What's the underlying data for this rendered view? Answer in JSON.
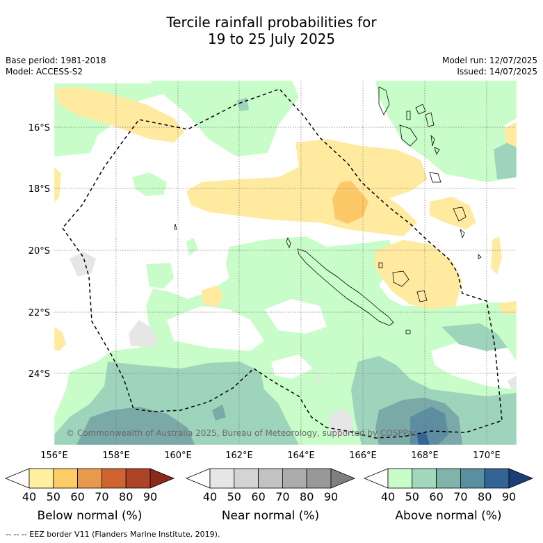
{
  "title_line1": "Tercile rainfall probabilities for",
  "title_line2": "19 to 25 July 2025",
  "base_period": "Base period: 1981-2018",
  "model": "Model: ACCESS-S2",
  "model_run": "Model run: 12/07/2025",
  "issued": "Issued: 14/07/2025",
  "copyright": "© Commonwealth of Australia 2025, Bureau of Meteorology, supported by COSPPac",
  "lat_labels": [
    "16°S",
    "18°S",
    "20°S",
    "22°S",
    "24°S"
  ],
  "lon_labels": [
    "156°E",
    "158°E",
    "160°E",
    "162°E",
    "164°E",
    "166°E",
    "168°E",
    "170°E"
  ],
  "colorbars": [
    {
      "title": "Below normal (%)",
      "ticks": [
        "40",
        "50",
        "60",
        "70",
        "80",
        "90"
      ],
      "colors": [
        "#ffffff",
        "#fff0a0",
        "#fdcc66",
        "#e89a4c",
        "#cf6430",
        "#ad4425",
        "#8a2a1c"
      ]
    },
    {
      "title": "Near normal (%)",
      "ticks": [
        "40",
        "50",
        "60",
        "70",
        "80",
        "90"
      ],
      "colors": [
        "#ffffff",
        "#e6e6e6",
        "#d4d4d4",
        "#c2c2c2",
        "#acacac",
        "#999999",
        "#7f7f7f"
      ]
    },
    {
      "title": "Above normal (%)",
      "ticks": [
        "40",
        "50",
        "60",
        "70",
        "80",
        "90"
      ],
      "colors": [
        "#ffffff",
        "#c8fcc8",
        "#a2d8bb",
        "#80b4aa",
        "#5a8fa0",
        "#326496",
        "#1a3f74"
      ]
    }
  ],
  "footer": "--  --  -- EEZ border V11 (Flanders Marine Institute, 2019).",
  "colors": {
    "below_50": "#ffeaa0",
    "below_60": "#fdc868",
    "near_50": "#e6e6e6",
    "above_50": "#c8fcc8",
    "above_60": "#9fd4bc",
    "above_70": "#7aa9a8",
    "above_80": "#5c8da0"
  }
}
